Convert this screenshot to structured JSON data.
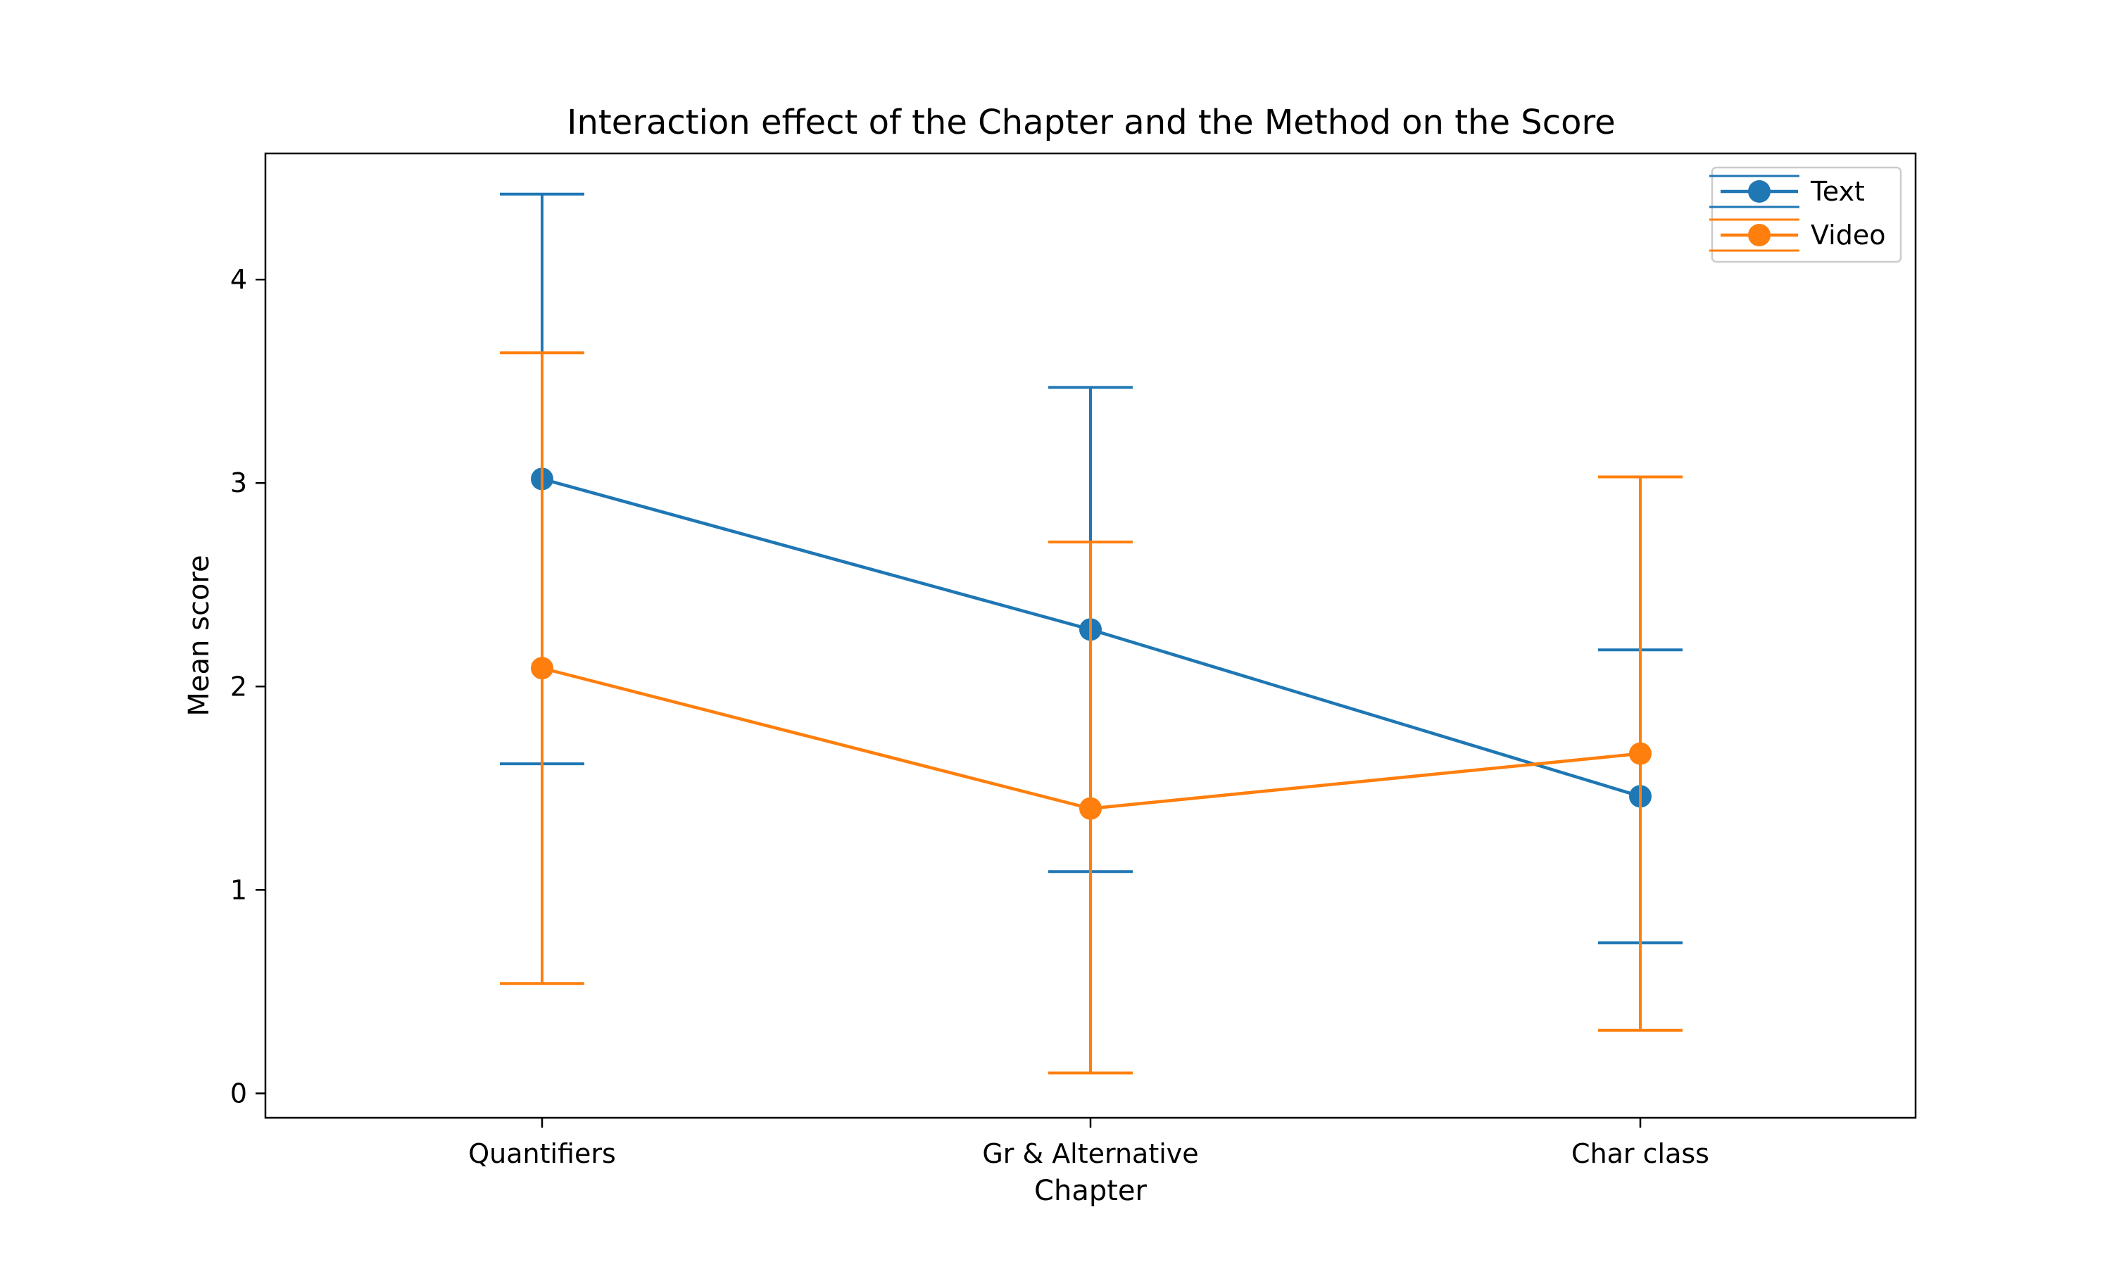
{
  "chart_data": {
    "type": "line",
    "title": "Interaction effect of the Chapter and the Method on the Score",
    "xlabel": "Chapter",
    "ylabel": "Mean score",
    "categories": [
      "Quantifiers",
      "Gr & Alternative",
      "Char class"
    ],
    "yticks": [
      "0",
      "1",
      "2",
      "3",
      "4"
    ],
    "ylim": [
      -0.12,
      4.62
    ],
    "grid": false,
    "legend_position": "top-right",
    "series": [
      {
        "name": "Text",
        "color": "#1f77b4",
        "values": [
          3.02,
          2.28,
          1.46
        ],
        "err_low": [
          1.62,
          1.09,
          0.74
        ],
        "err_high": [
          4.42,
          3.47,
          2.18
        ]
      },
      {
        "name": "Video",
        "color": "#ff7f0e",
        "values": [
          2.09,
          1.4,
          1.67
        ],
        "err_low": [
          0.54,
          0.1,
          0.31
        ],
        "err_high": [
          3.64,
          2.71,
          3.03
        ]
      }
    ]
  }
}
